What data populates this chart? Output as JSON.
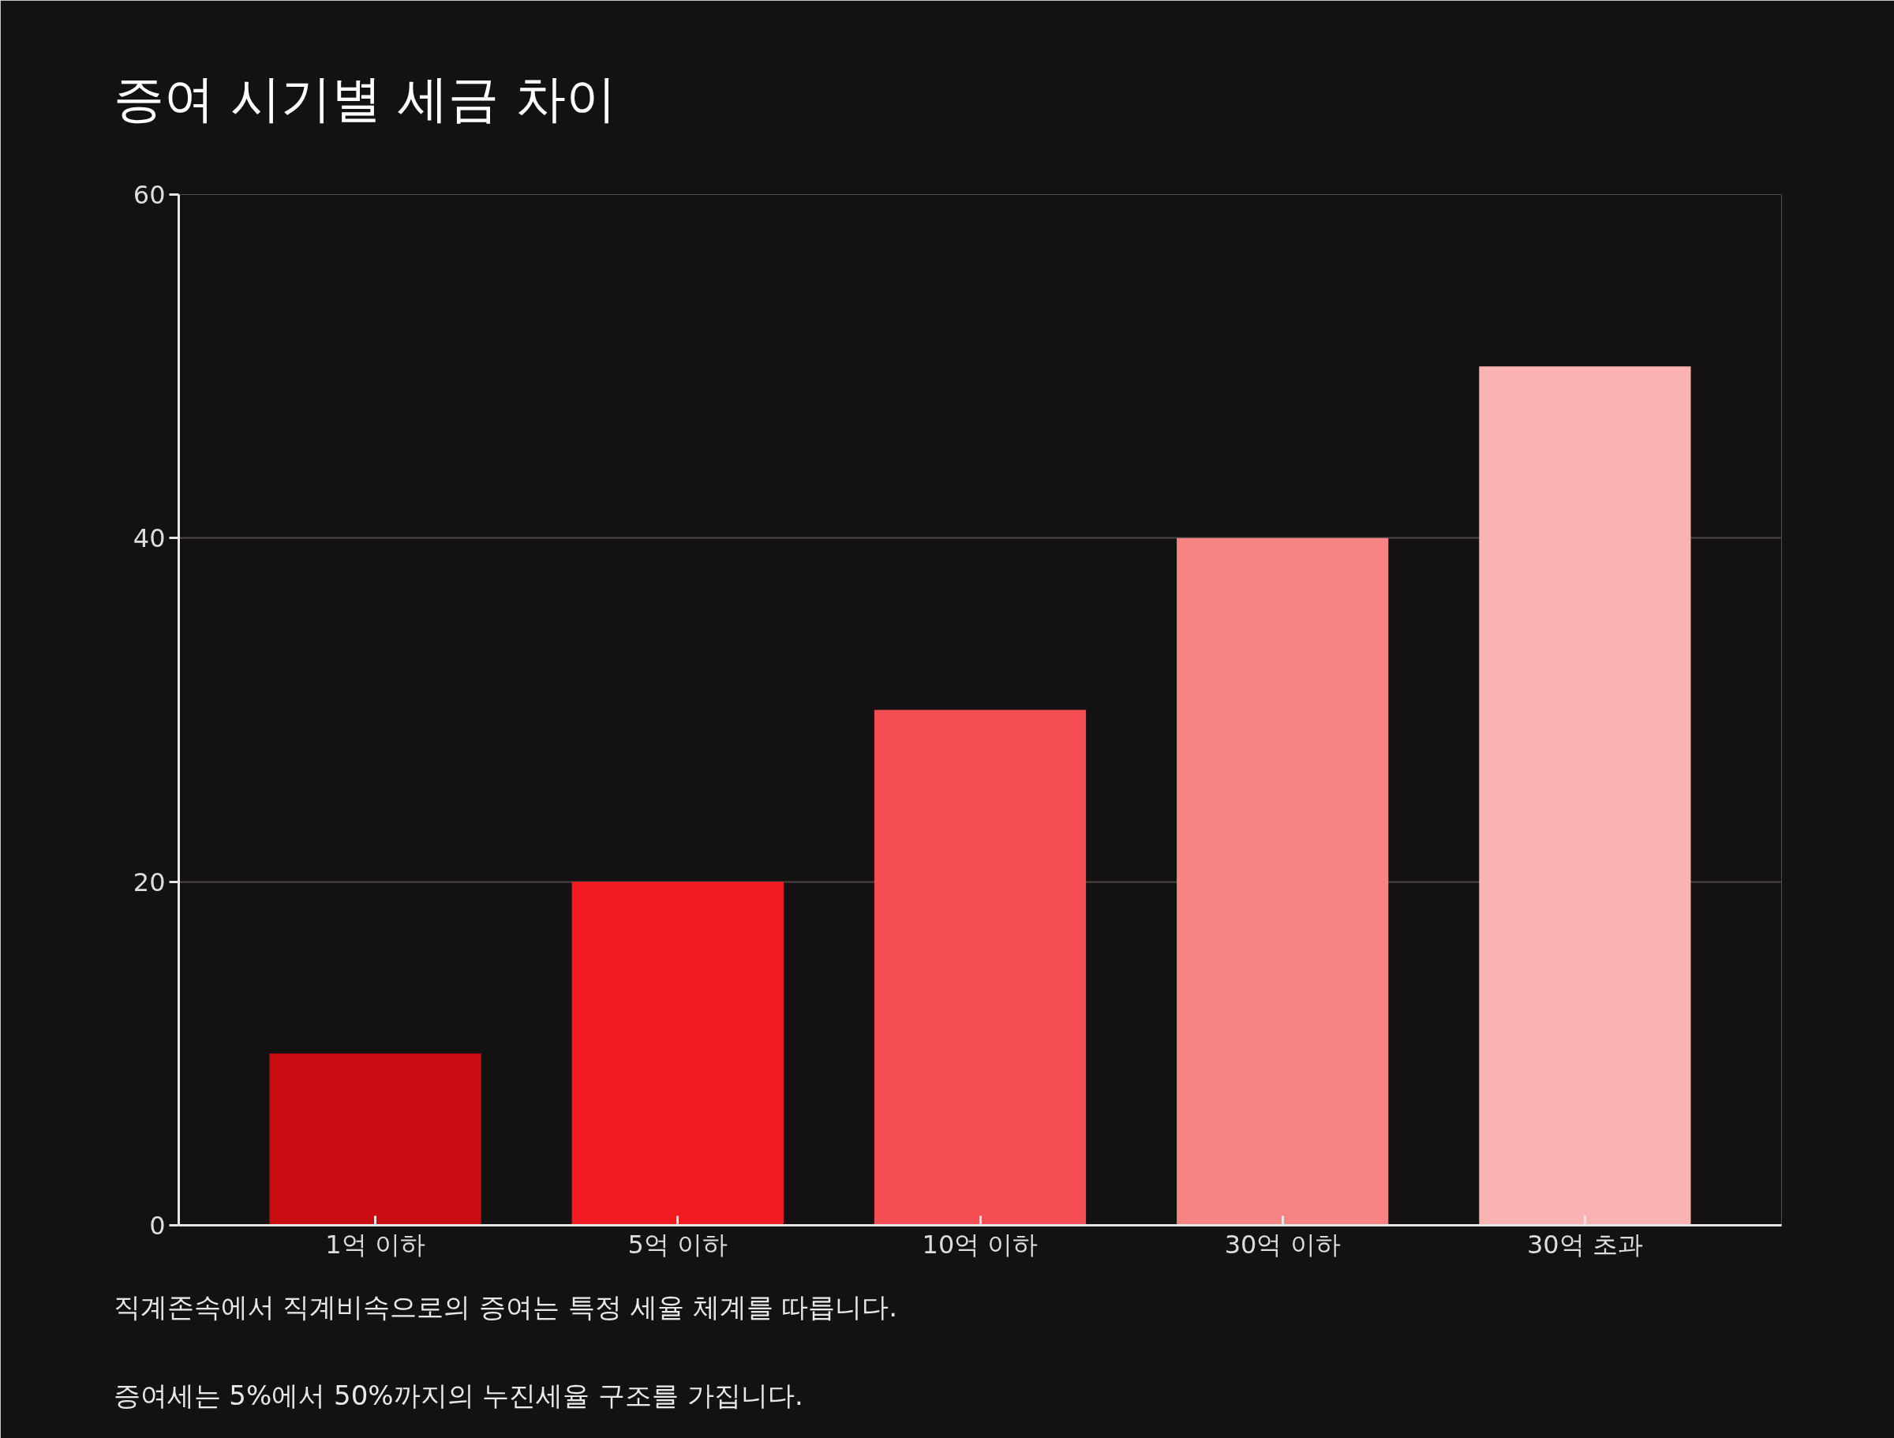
{
  "chart_data": {
    "type": "bar",
    "title": "증여 시기별 세금 차이",
    "categories": [
      "1억 이하",
      "5억 이하",
      "10억 이하",
      "30억 이하",
      "30억 초과"
    ],
    "values": [
      10,
      20,
      30,
      40,
      50
    ],
    "colors": [
      "#c90c11",
      "#f21b21",
      "#f54d54",
      "#f88383",
      "#f9b3b3"
    ],
    "ylim": [
      0,
      60
    ],
    "yticks": [
      0,
      20,
      40,
      60
    ],
    "grid": "y",
    "annotations": [
      "직계존속에서 직계비속으로의 증여는 특정 세율 체계를 따릅니다.",
      "증여세는 5%에서 50%까지의 누진세율 구조를 가집니다."
    ]
  }
}
